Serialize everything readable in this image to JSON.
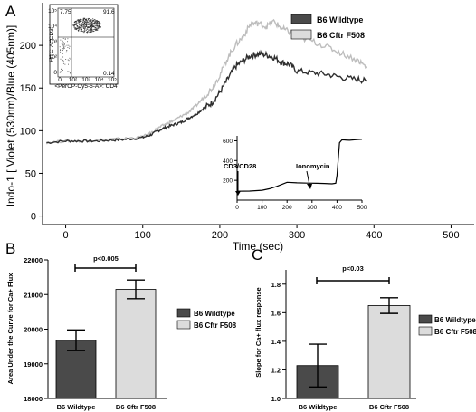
{
  "colors": {
    "dark": "#4a4a4a",
    "light": "#dcdcdc",
    "line_dark": "#2e2e2e",
    "line_light": "#bdbdbd"
  },
  "chart_data": [
    {
      "panel": "A",
      "type": "line",
      "xlabel": "Time (sec)",
      "ylabel": "Indo-1 [ Violet (530nm)/Blue (405nm)]",
      "xlim": [
        -30,
        530
      ],
      "ylim": [
        -10,
        250
      ],
      "xticks": [
        "0",
        "100",
        "200",
        "300",
        "400",
        "500"
      ],
      "yticks": [
        "0",
        "50",
        "100",
        "150",
        "200"
      ],
      "legend_position": "top-right",
      "series": [
        {
          "name": "B6 Wildtype",
          "color": "#2e2e2e",
          "x": [
            -25,
            0,
            20,
            40,
            60,
            80,
            100,
            110,
            120,
            130,
            140,
            150,
            160,
            170,
            180,
            190,
            200,
            210,
            220,
            230,
            240,
            250,
            260,
            270,
            280,
            290,
            300,
            320,
            340,
            360,
            380,
            390
          ],
          "y": [
            86,
            88,
            88,
            88,
            89,
            90,
            92,
            95,
            100,
            104,
            107,
            110,
            115,
            120,
            127,
            133,
            145,
            160,
            175,
            182,
            188,
            190,
            189,
            186,
            180,
            178,
            170,
            168,
            166,
            162,
            160,
            158
          ]
        },
        {
          "name": "B6 Cftr F508",
          "color": "#bdbdbd",
          "x": [
            -25,
            0,
            20,
            40,
            60,
            80,
            100,
            110,
            120,
            130,
            140,
            150,
            160,
            170,
            180,
            190,
            200,
            210,
            220,
            230,
            240,
            250,
            260,
            270,
            280,
            290,
            300,
            320,
            340,
            360,
            380,
            390
          ],
          "y": [
            86,
            88,
            88,
            89,
            90,
            91,
            93,
            97,
            103,
            108,
            112,
            117,
            122,
            130,
            140,
            150,
            165,
            185,
            200,
            210,
            225,
            226,
            222,
            228,
            220,
            216,
            210,
            205,
            198,
            190,
            182,
            175
          ]
        }
      ]
    },
    {
      "panel": "A-inset-flow",
      "type": "scatter",
      "quadrant_labels": [
        "7.75",
        "91.6",
        "0.14"
      ],
      "ylabel": "FITC-A: CD3",
      "xlabel": "<PerCP-Cy5-5-A>: CD4",
      "yticks": [
        "10⁵",
        "10⁴",
        "10³",
        "10²",
        "0"
      ],
      "xticks": [
        "0",
        "10²",
        "10³",
        "10⁴",
        "10⁵"
      ]
    },
    {
      "panel": "A-inset-trace",
      "type": "line",
      "xlim": [
        0,
        500
      ],
      "ylim": [
        0,
        650
      ],
      "xticks": [
        "0",
        "100",
        "200",
        "300",
        "400",
        "500"
      ],
      "yticks": [
        "200",
        "400",
        "600"
      ],
      "annotations": [
        "CD3/CD28",
        "Ionomycin"
      ],
      "x": [
        0,
        50,
        100,
        130,
        160,
        200,
        240,
        280,
        320,
        350,
        380,
        395,
        400,
        410,
        420,
        450,
        480,
        500
      ],
      "y": [
        90,
        92,
        100,
        115,
        140,
        180,
        175,
        172,
        170,
        168,
        165,
        170,
        250,
        580,
        610,
        605,
        612,
        615
      ]
    },
    {
      "panel": "B",
      "type": "bar",
      "categories": [
        "B6 Wildtype",
        "B6 Cftr F508"
      ],
      "values": [
        19680,
        21150
      ],
      "errors": [
        300,
        270
      ],
      "ylabel": "Area Under the Curve for Ca+ Flux",
      "ylim": [
        18000,
        22000
      ],
      "yticks": [
        "18000",
        "19000",
        "20000",
        "21000",
        "22000"
      ],
      "annotation": "p<0.005",
      "legend": [
        "B6 Wildtype",
        "B6 Cftr F508"
      ]
    },
    {
      "panel": "C",
      "type": "bar",
      "categories": [
        "B6 Wildtype",
        "B6 Cftr F508"
      ],
      "values": [
        1.23,
        1.65
      ],
      "errors": [
        0.15,
        0.055
      ],
      "ylabel": "Slope for Ca+ flux response",
      "ylim": [
        1.0,
        1.9
      ],
      "yticks": [
        "1.0",
        "1.2",
        "1.4",
        "1.6",
        "1.8"
      ],
      "annotation": "p<0.03",
      "legend": [
        "B6 Wildtype",
        "B6 Cftr F508"
      ]
    }
  ],
  "panels": {
    "a": "A",
    "b": "B",
    "c": "C"
  }
}
